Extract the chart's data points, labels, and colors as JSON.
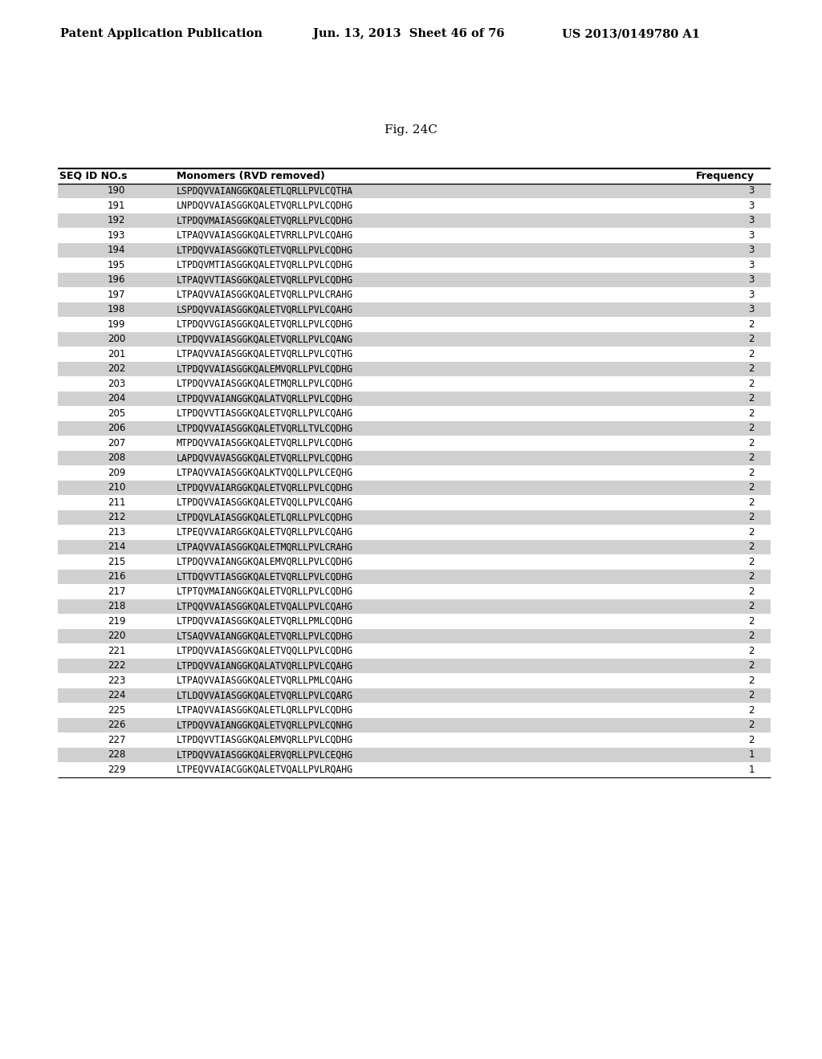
{
  "header_line1": "Patent Application Publication",
  "header_line2": "Jun. 13, 2013  Sheet 46 of 76",
  "header_line3": "US 2013/0149780 A1",
  "fig_label": "Fig. 24C",
  "col1_header": "SEQ ID NO.s",
  "col2_header": "Monomers (RVD removed)",
  "col3_header": "Frequency",
  "rows": [
    [
      190,
      "LSPDQVVAIANGGKQALETLQRLLPVLCQTHA",
      3
    ],
    [
      191,
      "LNPDQVVAIASGGKQALETVQRLLPVLCQDHG",
      3
    ],
    [
      192,
      "LTPDQVMAIASGGKQALETVQRLLPVLCQDHG",
      3
    ],
    [
      193,
      "LTPAQVVAIASGGKQALETVRRLLPVLCQAHG",
      3
    ],
    [
      194,
      "LTPDQVVAIASGGKQTLETVQRLLPVLCQDHG",
      3
    ],
    [
      195,
      "LTPDQVMTIASGGKQALETVQRLLPVLCQDHG",
      3
    ],
    [
      196,
      "LTPAQVVTIASGGKQALETVQRLLPVLCQDHG",
      3
    ],
    [
      197,
      "LTPAQVVAIASGGKQALETVQRLLPVLCRAHG",
      3
    ],
    [
      198,
      "LSPDQVVAIASGGKQALETVQRLLPVLCQAHG",
      3
    ],
    [
      199,
      "LTPDQVVGIASGGKQALETVQRLLPVLCQDHG",
      2
    ],
    [
      200,
      "LTPDQVVAIASGGKQALETVQRLLPVLCQANG",
      2
    ],
    [
      201,
      "LTPAQVVAIASGGKQALETVQRLLPVLCQTHG",
      2
    ],
    [
      202,
      "LTPDQVVAIASGGKQALEMVQRLLPVLCQDHG",
      2
    ],
    [
      203,
      "LTPDQVVAIASGGKQALETMQRLLPVLCQDHG",
      2
    ],
    [
      204,
      "LTPDQVVAIANGGKQALATVQRLLPVLCQDHG",
      2
    ],
    [
      205,
      "LTPDQVVTIASGGKQALETVQRLLPVLCQAHG",
      2
    ],
    [
      206,
      "LTPDQVVAIASGGKQALETVQRLLTVLCQDHG",
      2
    ],
    [
      207,
      "MTPDQVVAIASGGKQALETVQRLLPVLCQDHG",
      2
    ],
    [
      208,
      "LAPDQVVAVASGGKQALETVQRLLPVLCQDHG",
      2
    ],
    [
      209,
      "LTPAQVVAIASGGKQALKTVQQLLPVLCEQHG",
      2
    ],
    [
      210,
      "LTPDQVVAIARGGKQALETVQRLLPVLCQDHG",
      2
    ],
    [
      211,
      "LTPDQVVAIASGGKQALETVQQLLPVLCQAHG",
      2
    ],
    [
      212,
      "LTPDQVLAIASGGKQALETLQRLLPVLCQDHG",
      2
    ],
    [
      213,
      "LTPEQVVAIARGGKQALETVQRLLPVLCQAHG",
      2
    ],
    [
      214,
      "LTPAQVVAIASGGKQALETMQRLLPVLCRAHG",
      2
    ],
    [
      215,
      "LTPDQVVAIANGGKQALEMVQRLLPVLCQDHG",
      2
    ],
    [
      216,
      "LTTDQVVTIASGGKQALETVQRLLPVLCQDHG",
      2
    ],
    [
      217,
      "LTPTQVMAIANGGKQALETVQRLLPVLCQDHG",
      2
    ],
    [
      218,
      "LTPQQVVAIASGGKQALETVQALLPVLCQAHG",
      2
    ],
    [
      219,
      "LTPDQVVAIASGGKQALETVQRLLPMLCQDHG",
      2
    ],
    [
      220,
      "LTSAQVVAIANGGKQALETVQRLLPVLCQDHG",
      2
    ],
    [
      221,
      "LTPDQVVAIASGGKQALETVQQLLPVLCQDHG",
      2
    ],
    [
      222,
      "LTPDQVVAIANGGKQALATVQRLLPVLCQAHG",
      2
    ],
    [
      223,
      "LTPAQVVAIASGGKQALETVQRLLPMLCQAHG",
      2
    ],
    [
      224,
      "LTLDQVVAIASGGKQALETVQRLLPVLCQARG",
      2
    ],
    [
      225,
      "LTPAQVVAIASGGKQALETLQRLLPVLCQDHG",
      2
    ],
    [
      226,
      "LTPDQVVAIANGGKQALETVQRLLPVLCQNHG",
      2
    ],
    [
      227,
      "LTPDQVVTIASGGKQALEMVQRLLPVLCQDHG",
      2
    ],
    [
      228,
      "LTPDQVVAIASGGKQALERVQRLLPVLCEQHG",
      1
    ],
    [
      229,
      "LTPEQVVAIACGGKQALETVQALLPVLRQAHG",
      1
    ]
  ],
  "shade_color": "#d0d0d0",
  "bg_color": "#ffffff"
}
